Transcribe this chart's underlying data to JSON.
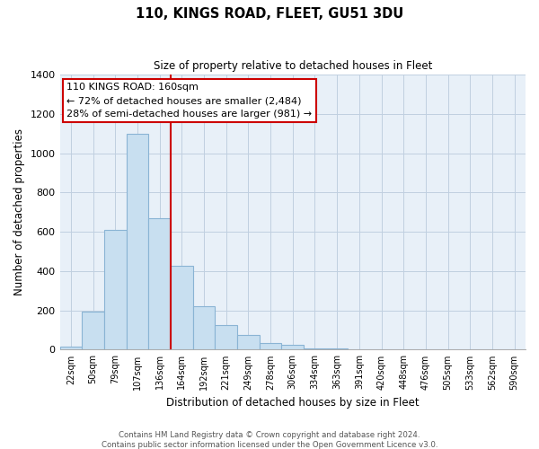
{
  "title": "110, KINGS ROAD, FLEET, GU51 3DU",
  "subtitle": "Size of property relative to detached houses in Fleet",
  "xlabel": "Distribution of detached houses by size in Fleet",
  "ylabel": "Number of detached properties",
  "bin_labels": [
    "22sqm",
    "50sqm",
    "79sqm",
    "107sqm",
    "136sqm",
    "164sqm",
    "192sqm",
    "221sqm",
    "249sqm",
    "278sqm",
    "306sqm",
    "334sqm",
    "363sqm",
    "391sqm",
    "420sqm",
    "448sqm",
    "476sqm",
    "505sqm",
    "533sqm",
    "562sqm",
    "590sqm"
  ],
  "bar_heights": [
    15,
    195,
    610,
    1100,
    670,
    425,
    220,
    125,
    75,
    35,
    25,
    5,
    5,
    0,
    0,
    0,
    0,
    0,
    0,
    0,
    0
  ],
  "bar_color": "#c8dff0",
  "bar_edge_color": "#8ab4d4",
  "vline_color": "#cc0000",
  "annotation_title": "110 KINGS ROAD: 160sqm",
  "annotation_line1": "← 72% of detached houses are smaller (2,484)",
  "annotation_line2": "28% of semi-detached houses are larger (981) →",
  "annotation_box_color": "#ffffff",
  "annotation_box_edge": "#cc0000",
  "plot_bg_color": "#e8f0f8",
  "grid_color": "#c0cfe0",
  "ylim": [
    0,
    1400
  ],
  "yticks": [
    0,
    200,
    400,
    600,
    800,
    1000,
    1200,
    1400
  ],
  "footer1": "Contains HM Land Registry data © Crown copyright and database right 2024.",
  "footer2": "Contains public sector information licensed under the Open Government Licence v3.0."
}
